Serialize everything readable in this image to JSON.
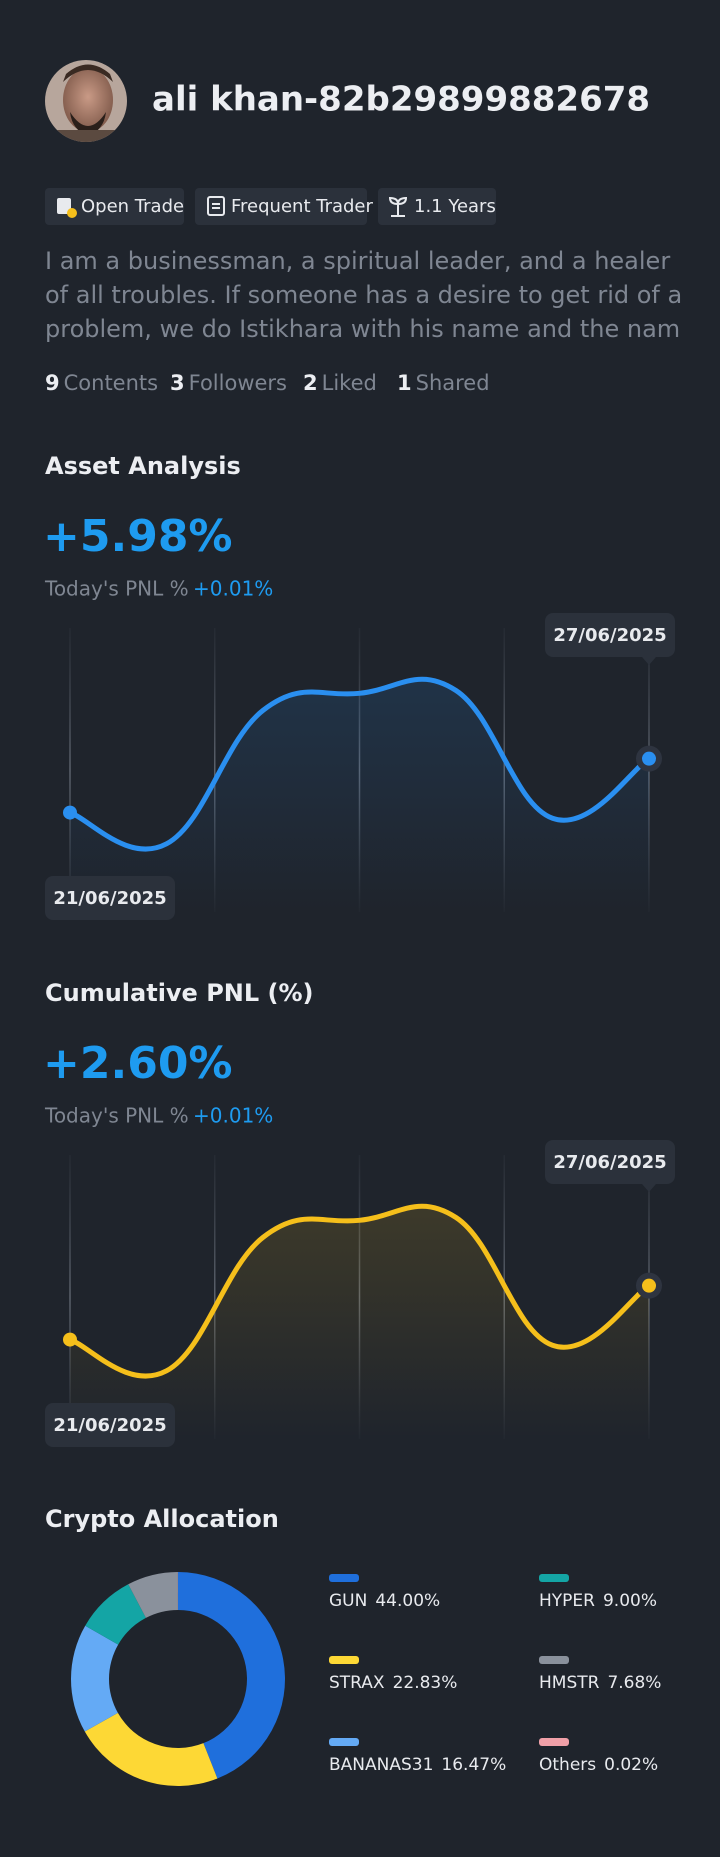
{
  "profile": {
    "name": "ali khan-82b29899882678",
    "tags": [
      "Open Trade",
      "Frequent Trader",
      "1.1 Years"
    ],
    "bio": "I am a businessman, a spiritual leader, and a healer of all troubles. If someone has a desire to get rid of a problem, we do Istikhara with his name and the nam",
    "stats": [
      {
        "count": 9,
        "label": "Contents"
      },
      {
        "count": 3,
        "label": "Followers"
      },
      {
        "count": 2,
        "label": "Liked"
      },
      {
        "count": 1,
        "label": "Shared"
      }
    ]
  },
  "asset_analysis": {
    "title": "Asset Analysis",
    "value": "+5.98%",
    "pnl_label": "Today's PNL %",
    "pnl_value": "+0.01%",
    "chart_data": {
      "type": "line",
      "categories": [
        "21/06/2025",
        null,
        null,
        null,
        null,
        null,
        "27/06/2025"
      ],
      "values": [
        3.5,
        2.4,
        7.1,
        7.7,
        7.8,
        3.3,
        5.4
      ],
      "color": "#2a8ff0",
      "ylim": [
        0,
        10
      ]
    }
  },
  "cumulative_pnl": {
    "title": "Cumulative PNL (%)",
    "value": "+2.60%",
    "pnl_label": "Today's PNL %",
    "pnl_value": "+0.01%",
    "chart_data": {
      "type": "line",
      "categories": [
        "21/06/2025",
        null,
        null,
        null,
        null,
        null,
        "27/06/2025"
      ],
      "values": [
        3.5,
        2.4,
        7.1,
        7.7,
        7.8,
        3.3,
        5.4
      ],
      "color": "#f5bf1b",
      "ylim": [
        0,
        10
      ]
    }
  },
  "crypto_allocation": {
    "title": "Crypto Allocation",
    "chart_data": {
      "type": "donut",
      "categories": [
        "GUN",
        "STRAX",
        "BANANAS31",
        "HYPER",
        "HMSTR",
        "Others"
      ],
      "values": [
        44,
        22.83,
        16.47,
        9,
        7.68,
        0.02
      ],
      "value_labels": [
        "44.00%",
        "22.83%",
        "16.47%",
        "9.00%",
        "7.68%",
        "0.02%"
      ],
      "colors": [
        "#1f6fdc",
        "#fdd835",
        "#64aaf5",
        "#14a5a5",
        "#8a919c",
        "#f0a0a8"
      ]
    }
  }
}
